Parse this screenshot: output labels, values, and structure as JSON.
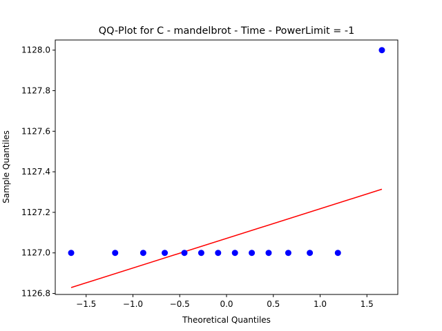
{
  "chart_data": {
    "type": "scatter",
    "title": "QQ-Plot for C - mandelbrot - Time - PowerLimit = -1",
    "xlabel": "Theoretical Quantiles",
    "ylabel": "Sample Quantiles",
    "xlim": [
      -1.83,
      1.83
    ],
    "ylim": [
      1126.795,
      1128.05
    ],
    "xticks": [
      -1.5,
      -1.0,
      -0.5,
      0.0,
      0.5,
      1.0,
      1.5
    ],
    "xtick_labels": [
      "−1.5",
      "−1.0",
      "−0.5",
      "0.0",
      "0.5",
      "1.0",
      "1.5"
    ],
    "yticks": [
      1126.8,
      1127.0,
      1127.2,
      1127.4,
      1127.6,
      1127.8,
      1128.0
    ],
    "ytick_labels": [
      "1126.8",
      "1127.0",
      "1127.2",
      "1127.4",
      "1127.6",
      "1127.8",
      "1128.0"
    ],
    "grid": false,
    "points": {
      "color": "#0000ff",
      "x": [
        -1.66,
        -1.19,
        -0.89,
        -0.66,
        -0.45,
        -0.27,
        -0.09,
        0.09,
        0.27,
        0.45,
        0.66,
        0.89,
        1.19,
        1.66
      ],
      "y": [
        1127.0,
        1127.0,
        1127.0,
        1127.0,
        1127.0,
        1127.0,
        1127.0,
        1127.0,
        1127.0,
        1127.0,
        1127.0,
        1127.0,
        1127.0,
        1128.0
      ]
    },
    "fit_line": {
      "color": "#ff0000",
      "x": [
        -1.66,
        1.66
      ],
      "y": [
        1126.829,
        1127.314
      ]
    }
  }
}
